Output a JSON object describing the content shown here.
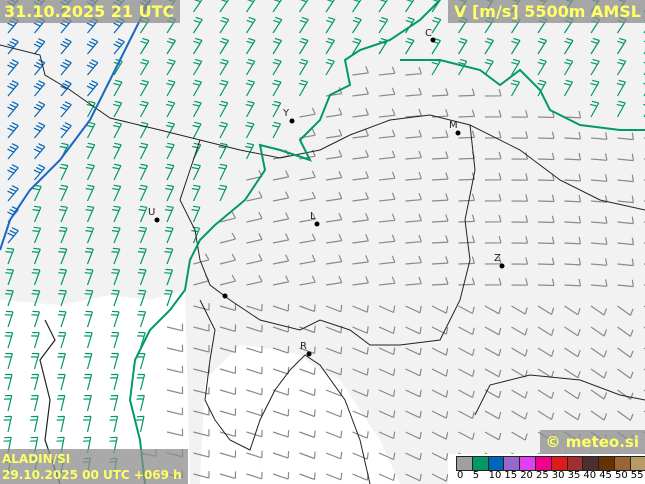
{
  "header": {
    "valid_time": "31.10.2025 21 UTC",
    "parameter": "V [m/s] 5500m AMSL"
  },
  "footer": {
    "model": "ALADIN/SI",
    "run": "29.10.2025 00 UTC +069 h",
    "copyright": "© meteo.si"
  },
  "legend": {
    "unit": "m/s",
    "labels": [
      "0",
      "5",
      "10",
      "15",
      "20",
      "25",
      "30",
      "35",
      "40",
      "45",
      "50",
      "55"
    ],
    "colors": [
      "#a0a0a0",
      "#009966",
      "#0066bb",
      "#9966cc",
      "#e040f0",
      "#f0008c",
      "#e01a1a",
      "#a03030",
      "#4a3030",
      "#663300",
      "#996633",
      "#b89a66"
    ]
  },
  "cities": [
    "C",
    "Y",
    "M",
    "L",
    "U",
    "Z",
    "R"
  ],
  "colors": {
    "barb_gray": "#8a8a8a",
    "barb_green": "#009966",
    "barb_blue": "#0066bb",
    "isotach_green": "#00996a",
    "isotach_blue": "#1a66c0"
  }
}
